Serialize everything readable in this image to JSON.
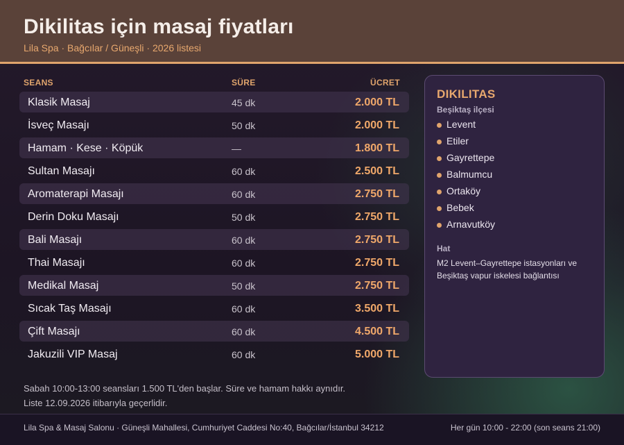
{
  "header": {
    "title": "Dikilitas için masaj fiyatları",
    "subtitle": "Lila Spa · Bağcılar / Güneşli · 2026 listesi"
  },
  "table": {
    "columns": {
      "session": "SEANS",
      "duration": "SÜRE",
      "price": "ÜCRET"
    },
    "rows": [
      {
        "name": "Klasik Masaj",
        "duration": "45 dk",
        "price": "2.000 TL"
      },
      {
        "name": "İsveç Masajı",
        "duration": "50 dk",
        "price": "2.000 TL"
      },
      {
        "name": "Hamam · Kese · Köpük",
        "duration": "—",
        "price": "1.800 TL"
      },
      {
        "name": "Sultan Masajı",
        "duration": "60 dk",
        "price": "2.500 TL"
      },
      {
        "name": "Aromaterapi Masajı",
        "duration": "60 dk",
        "price": "2.750 TL"
      },
      {
        "name": "Derin Doku Masajı",
        "duration": "50 dk",
        "price": "2.750 TL"
      },
      {
        "name": "Bali Masajı",
        "duration": "60 dk",
        "price": "2.750 TL"
      },
      {
        "name": "Thai Masajı",
        "duration": "60 dk",
        "price": "2.750 TL"
      },
      {
        "name": "Medikal Masaj",
        "duration": "50 dk",
        "price": "2.750 TL"
      },
      {
        "name": "Sıcak Taş Masajı",
        "duration": "60 dk",
        "price": "3.500 TL"
      },
      {
        "name": "Çift Masajı",
        "duration": "60 dk",
        "price": "4.500 TL"
      },
      {
        "name": "Jakuzili VIP Masaj",
        "duration": "60 dk",
        "price": "5.000 TL"
      }
    ]
  },
  "notes": {
    "line1": "Sabah 10:00-13:00 seansları 1.500 TL'den başlar. Süre ve hamam hakkı aynıdır.",
    "line2": "Liste 12.09.2026 itibarıyla geçerlidir."
  },
  "panel": {
    "title": "DIKILITAS",
    "district": "Beşiktaş ilçesi",
    "neighborhoods": [
      "Levent",
      "Etiler",
      "Gayrettepe",
      "Balmumcu",
      "Ortaköy",
      "Bebek",
      "Arnavutköy"
    ],
    "transport_title": "Hat",
    "transport_text": "M2 Levent–Gayrettepe istasyonları ve Beşiktaş vapur iskelesi bağlantısı"
  },
  "footer": {
    "address": "Lila Spa & Masaj Salonu · Güneşli Mahallesi, Cumhuriyet Caddesi No:40, Bağcılar/İstanbul 34212",
    "hours": "Her gün 10:00 - 22:00 (son seans 21:00)"
  },
  "colors": {
    "accent": "#e0a46c",
    "header_bg": "#5a4239",
    "panel_bg": "#2f2340"
  }
}
